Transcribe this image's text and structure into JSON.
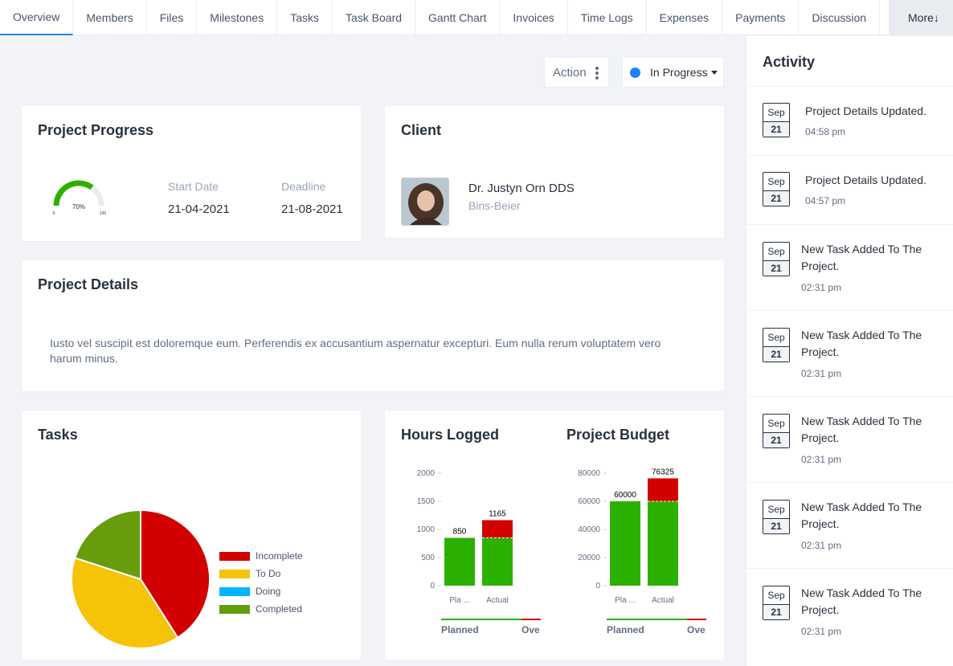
{
  "tabs": [
    {
      "label": "Overview",
      "active": true
    },
    {
      "label": "Members"
    },
    {
      "label": "Files"
    },
    {
      "label": "Milestones"
    },
    {
      "label": "Tasks"
    },
    {
      "label": "Task Board"
    },
    {
      "label": "Gantt Chart"
    },
    {
      "label": "Invoices"
    },
    {
      "label": "Time Logs"
    },
    {
      "label": "Expenses"
    },
    {
      "label": "Payments"
    },
    {
      "label": "Discussion"
    }
  ],
  "more_label": "More↓",
  "action_label": "Action",
  "status": {
    "label": "In Progress",
    "color": "#1d82f5"
  },
  "project_progress": {
    "title": "Project Progress",
    "gauge": {
      "value": 70,
      "label": "70%",
      "min_label": "0",
      "max_label": "100",
      "color": "#2cb100"
    },
    "start_date_label": "Start Date",
    "start_date": "21-04-2021",
    "deadline_label": "Deadline",
    "deadline": "21-08-2021"
  },
  "client": {
    "title": "Client",
    "name": "Dr. Justyn Orn DDS",
    "company": "Bins-Beier"
  },
  "project_details": {
    "title": "Project Details",
    "text": "Iusto vel suscipit est doloremque eum. Perferendis ex accusantium aspernatur excepturi. Eum nulla rerum voluptatem vero harum minus."
  },
  "tasks_card": {
    "title": "Tasks"
  },
  "hours_card": {
    "title": "Hours Logged"
  },
  "budget_card": {
    "title": "Project Budget"
  },
  "chart_data": [
    {
      "type": "pie",
      "title": "Tasks",
      "legend_position": "right",
      "slices": [
        {
          "name": "Incomplete",
          "value": 41,
          "color": "#d30000"
        },
        {
          "name": "To Do",
          "value": 39,
          "color": "#f5c308"
        },
        {
          "name": "Doing",
          "value": 0,
          "color": "#00b5ff"
        },
        {
          "name": "Completed",
          "value": 20,
          "color": "#679c0d"
        }
      ]
    },
    {
      "type": "bar",
      "title": "Hours Logged",
      "categories": [
        "Pla ...",
        "Actual"
      ],
      "values": [
        850,
        1165
      ],
      "planned_value": 850,
      "ylim": [
        0,
        2000
      ],
      "yticks": [
        0,
        500,
        1000,
        1500,
        2000
      ],
      "legend": [
        "Planned",
        "Ove"
      ],
      "colors": {
        "planned": "#2cb100",
        "over": "#d30000"
      }
    },
    {
      "type": "bar",
      "title": "Project Budget",
      "categories": [
        "Pla ...",
        "Actual"
      ],
      "values": [
        60000,
        76325
      ],
      "planned_value": 60000,
      "ylim": [
        0,
        80000
      ],
      "yticks": [
        0,
        20000,
        40000,
        60000,
        80000
      ],
      "legend": [
        "Planned",
        "Ove"
      ],
      "colors": {
        "planned": "#2cb100",
        "over": "#d30000"
      }
    }
  ],
  "activity": {
    "title": "Activity",
    "items": [
      {
        "month": "Sep",
        "day": "21",
        "text": "Project Details Updated.",
        "time": "04:58 pm"
      },
      {
        "month": "Sep",
        "day": "21",
        "text": "Project Details Updated.",
        "time": "04:57 pm"
      },
      {
        "month": "Sep",
        "day": "21",
        "text": "New Task Added To The Project.",
        "time": "02:31 pm"
      },
      {
        "month": "Sep",
        "day": "21",
        "text": "New Task Added To The Project.",
        "time": "02:31 pm"
      },
      {
        "month": "Sep",
        "day": "21",
        "text": "New Task Added To The Project.",
        "time": "02:31 pm"
      },
      {
        "month": "Sep",
        "day": "21",
        "text": "New Task Added To The Project.",
        "time": "02:31 pm"
      },
      {
        "month": "Sep",
        "day": "21",
        "text": "New Task Added To The Project.",
        "time": "02:31 pm"
      }
    ]
  }
}
